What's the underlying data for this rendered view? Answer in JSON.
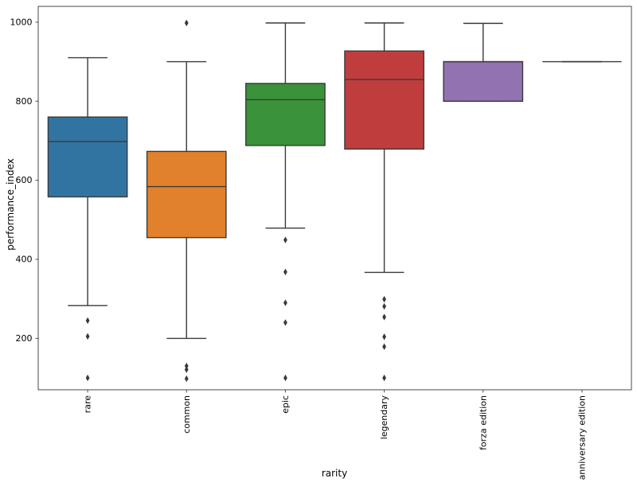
{
  "figure": {
    "background": "#ffffff"
  },
  "chart_data": {
    "type": "box",
    "title": "",
    "xlabel": "rarity",
    "ylabel": "performance_index",
    "ylim": [
      70,
      1040
    ],
    "yticks": [
      200,
      400,
      600,
      800,
      1000
    ],
    "grid": false,
    "legend_position": "none",
    "categories": [
      "rare",
      "common",
      "epic",
      "legendary",
      "forza edition",
      "anniversary edition"
    ],
    "boxes": [
      {
        "category": "rare",
        "color": "#3274a1",
        "whisker_low": 283,
        "q1": 558,
        "median": 698,
        "q3": 760,
        "whisker_high": 910,
        "outliers": [
          245,
          205,
          100
        ]
      },
      {
        "category": "common",
        "color": "#e1812c",
        "whisker_low": 200,
        "q1": 455,
        "median": 584,
        "q3": 673,
        "whisker_high": 900,
        "outliers": [
          998,
          130,
          121,
          98
        ]
      },
      {
        "category": "epic",
        "color": "#3a923a",
        "whisker_low": 479,
        "q1": 688,
        "median": 804,
        "q3": 845,
        "whisker_high": 998,
        "outliers": [
          449,
          368,
          290,
          240,
          100
        ]
      },
      {
        "category": "legendary",
        "color": "#c03d3e",
        "whisker_low": 367,
        "q1": 679,
        "median": 855,
        "q3": 927,
        "whisker_high": 998,
        "outliers": [
          299,
          281,
          254,
          204,
          179,
          100
        ]
      },
      {
        "category": "forza edition",
        "color": "#9372b2",
        "whisker_low": 800,
        "q1": 800,
        "median": 900,
        "q3": 900,
        "whisker_high": 997,
        "outliers": []
      },
      {
        "category": "anniversary edition",
        "color": "#845b53",
        "whisker_low": 900,
        "q1": 900,
        "median": 900,
        "q3": 900,
        "whisker_high": 900,
        "outliers": []
      }
    ],
    "style": {
      "edge_color": "#3a3a3a",
      "flier_color": "#3a3a3a",
      "spine_color": "#4a4a4a",
      "tick_text_color": "#000000",
      "tick_font_px": 11
    }
  }
}
